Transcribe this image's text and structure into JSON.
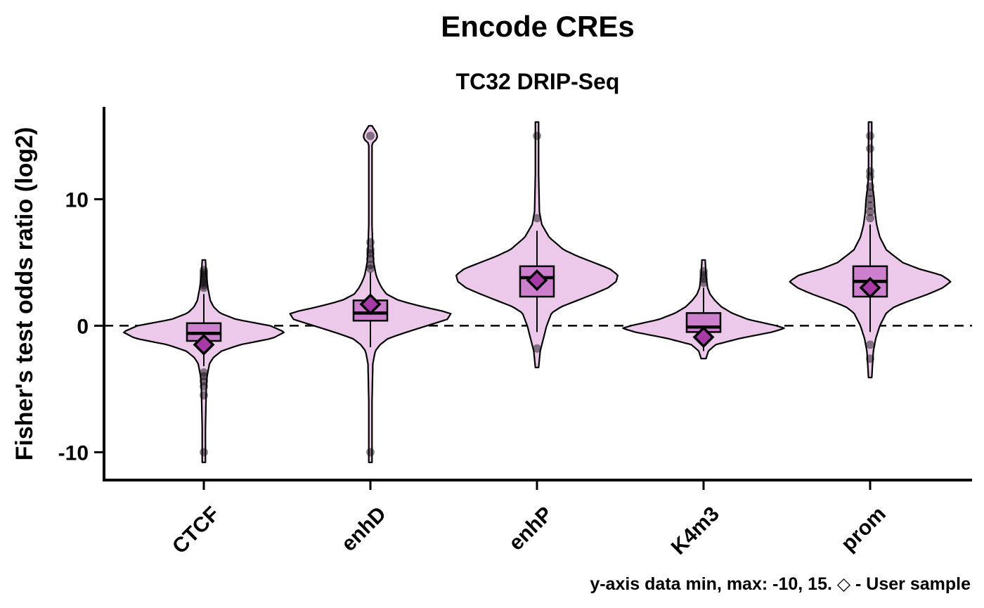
{
  "chart_data": {
    "type": "violin",
    "title": "Encode CREs",
    "subtitle": "TC32 DRIP-Seq",
    "ylabel": "Fisher's test odds ratio (log2)",
    "xlabel": "",
    "ylim": [
      -12.2,
      17.3
    ],
    "yticks": [
      -10,
      0,
      10
    ],
    "yticklabels": [
      "-10",
      "0",
      "10"
    ],
    "reference_line": 0,
    "caption": "y-axis data min, max: -10, 15. ◇ - User sample",
    "colors": {
      "violin_fill": "#ecc9ea",
      "box_fill": "#cc7fcc",
      "marker_fill": "#a83aa8",
      "outline": "#000000"
    },
    "categories": [
      "CTCF",
      "enhD",
      "enhP",
      "K4m3",
      "prom"
    ],
    "groups": [
      {
        "name": "CTCF",
        "violin_range": [
          -10.8,
          5.2
        ],
        "density": [
          [
            -10.8,
            0.02
          ],
          [
            -8,
            0.02
          ],
          [
            -5,
            0.03
          ],
          [
            -4,
            0.04
          ],
          [
            -3,
            0.07
          ],
          [
            -2.5,
            0.12
          ],
          [
            -2,
            0.22
          ],
          [
            -1.5,
            0.45
          ],
          [
            -1,
            0.85
          ],
          [
            -0.5,
            1.0
          ],
          [
            0,
            0.82
          ],
          [
            0.5,
            0.4
          ],
          [
            1,
            0.2
          ],
          [
            1.5,
            0.12
          ],
          [
            2,
            0.08
          ],
          [
            3,
            0.05
          ],
          [
            4,
            0.03
          ],
          [
            5.2,
            0.02
          ]
        ],
        "box": {
          "q1": -1.2,
          "median": -0.6,
          "q3": 0.2
        },
        "whiskers": [
          -3.2,
          2.5
        ],
        "outliers": [
          -10,
          -5.5,
          -4.8,
          -4.4,
          -4.0,
          -3.7,
          3.0,
          3.2,
          3.4,
          3.6,
          3.8,
          4.0,
          4.2,
          4.4
        ],
        "user_sample": -1.5
      },
      {
        "name": "enhD",
        "violin_range": [
          -10.8,
          15.8
        ],
        "density": [
          [
            -10.8,
            0.02
          ],
          [
            -6,
            0.02
          ],
          [
            -3,
            0.03
          ],
          [
            -2,
            0.06
          ],
          [
            -1.5,
            0.12
          ],
          [
            -1,
            0.22
          ],
          [
            -0.5,
            0.45
          ],
          [
            0,
            0.7
          ],
          [
            0.5,
            0.95
          ],
          [
            1,
            1.0
          ],
          [
            1.5,
            0.65
          ],
          [
            2,
            0.35
          ],
          [
            2.5,
            0.2
          ],
          [
            3,
            0.14
          ],
          [
            3.5,
            0.1
          ],
          [
            4,
            0.07
          ],
          [
            5,
            0.04
          ],
          [
            6,
            0.03
          ],
          [
            8,
            0.02
          ],
          [
            14.4,
            0.02
          ],
          [
            14.7,
            0.07
          ],
          [
            15,
            0.09
          ],
          [
            15.3,
            0.07
          ],
          [
            15.8,
            0.02
          ]
        ],
        "box": {
          "q1": 0.4,
          "median": 1.0,
          "q3": 2.0
        },
        "whiskers": [
          -1.7,
          4.2
        ],
        "outliers": [
          -10,
          4.5,
          4.8,
          5.3,
          5.7,
          6.0,
          6.6,
          15
        ],
        "user_sample": 1.7
      },
      {
        "name": "enhP",
        "violin_range": [
          -3.3,
          16.1
        ],
        "density": [
          [
            -3.3,
            0.02
          ],
          [
            -2,
            0.04
          ],
          [
            -1,
            0.08
          ],
          [
            0,
            0.12
          ],
          [
            1,
            0.18
          ],
          [
            1.5,
            0.3
          ],
          [
            2,
            0.5
          ],
          [
            2.5,
            0.7
          ],
          [
            3,
            0.88
          ],
          [
            3.5,
            0.98
          ],
          [
            4,
            1.0
          ],
          [
            4.5,
            0.9
          ],
          [
            5,
            0.7
          ],
          [
            5.5,
            0.5
          ],
          [
            6,
            0.33
          ],
          [
            7,
            0.15
          ],
          [
            8,
            0.06
          ],
          [
            9,
            0.03
          ],
          [
            12,
            0.02
          ],
          [
            16.1,
            0.02
          ]
        ],
        "box": {
          "q1": 2.3,
          "median": 3.8,
          "q3": 4.7
        },
        "whiskers": [
          -0.5,
          7.5
        ],
        "outliers": [
          -1.8,
          8.5,
          15
        ],
        "user_sample": 3.6
      },
      {
        "name": "K4m3",
        "violin_range": [
          -2.6,
          5.2
        ],
        "density": [
          [
            -2.6,
            0.03
          ],
          [
            -2,
            0.06
          ],
          [
            -1.5,
            0.15
          ],
          [
            -1,
            0.45
          ],
          [
            -0.5,
            0.85
          ],
          [
            -0.2,
            1.0
          ],
          [
            0,
            0.9
          ],
          [
            0.5,
            0.55
          ],
          [
            1,
            0.35
          ],
          [
            1.5,
            0.22
          ],
          [
            2,
            0.14
          ],
          [
            2.5,
            0.08
          ],
          [
            3,
            0.05
          ],
          [
            4,
            0.03
          ],
          [
            5.2,
            0.02
          ]
        ],
        "box": {
          "q1": -0.5,
          "median": -0.1,
          "q3": 1.0
        },
        "whiskers": [
          -2.0,
          3.0
        ],
        "outliers": [
          3.4,
          3.7,
          4.0,
          4.3
        ],
        "user_sample": -0.9
      },
      {
        "name": "prom",
        "violin_range": [
          -4.1,
          16.1
        ],
        "density": [
          [
            -4.1,
            0.02
          ],
          [
            -2,
            0.04
          ],
          [
            -1,
            0.07
          ],
          [
            0,
            0.12
          ],
          [
            1,
            0.2
          ],
          [
            1.5,
            0.3
          ],
          [
            2,
            0.5
          ],
          [
            2.5,
            0.72
          ],
          [
            3,
            0.9
          ],
          [
            3.5,
            1.0
          ],
          [
            4,
            0.88
          ],
          [
            4.5,
            0.6
          ],
          [
            5,
            0.4
          ],
          [
            6,
            0.2
          ],
          [
            7,
            0.12
          ],
          [
            8,
            0.08
          ],
          [
            9,
            0.06
          ],
          [
            10,
            0.05
          ],
          [
            11,
            0.03
          ],
          [
            12,
            0.02
          ],
          [
            16.1,
            0.02
          ]
        ],
        "box": {
          "q1": 2.3,
          "median": 3.5,
          "q3": 4.7
        },
        "whiskers": [
          -0.5,
          8.0
        ],
        "outliers": [
          -2.6,
          -1.5,
          8.5,
          9.0,
          9.5,
          10.0,
          10.5,
          11.0,
          11.8,
          12.2,
          14.0,
          15.0
        ],
        "user_sample": 3.0
      }
    ]
  }
}
